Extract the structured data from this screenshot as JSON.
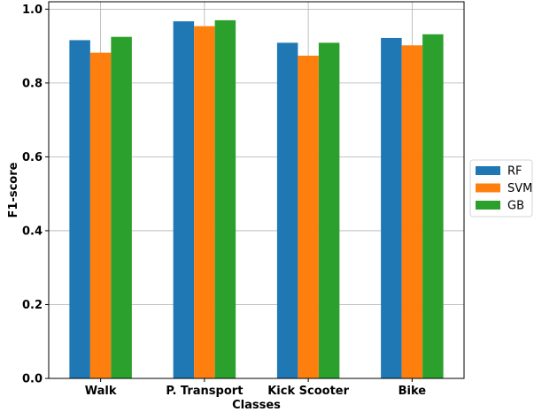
{
  "chart_data": {
    "type": "bar",
    "title": "",
    "xlabel": "Classes",
    "ylabel": "F1-score",
    "categories": [
      "Walk",
      "P. Transport",
      "Kick Scooter",
      "Bike"
    ],
    "series": [
      {
        "name": "RF",
        "color": "#1f77b4",
        "values": [
          0.916,
          0.967,
          0.909,
          0.922
        ]
      },
      {
        "name": "SVM",
        "color": "#ff7f0e",
        "values": [
          0.882,
          0.954,
          0.874,
          0.902
        ]
      },
      {
        "name": "GB",
        "color": "#2ca02c",
        "values": [
          0.925,
          0.97,
          0.909,
          0.932
        ]
      }
    ],
    "ylim": [
      0,
      1.02
    ],
    "yticks": [
      "0.0",
      "0.2",
      "0.4",
      "0.6",
      "0.8",
      "1.0"
    ],
    "grid": true,
    "legend_position": "right"
  }
}
